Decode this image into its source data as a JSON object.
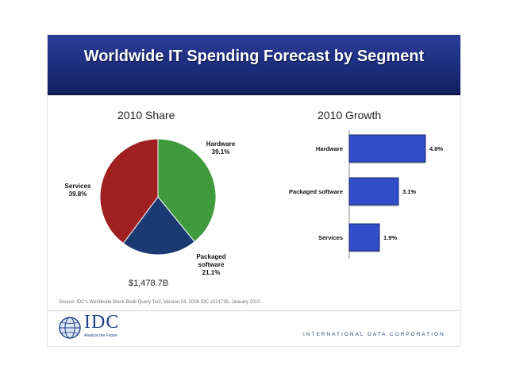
{
  "slide": {
    "title": "Worldwide IT Spending Forecast by Segment",
    "source": "Source: IDC's Worldwide Black Book Query Tool, Version 04, 2009 IDC #221730, January 2010",
    "brand": "IDC",
    "tagline": "Analyze the Future",
    "corporation": "INTERNATIONAL DATA CORPORATION"
  },
  "colors": {
    "banner": "#1c2d7d",
    "hardware": "#3f9a3c",
    "packaged_software": "#1b3a73",
    "services": "#a01f1f",
    "bars": "#2f4ec8"
  },
  "chart_data": [
    {
      "type": "pie",
      "title": "2010 Share",
      "total_label": "$1,478.7B",
      "slices": [
        {
          "label": "Hardware",
          "value": 39.1,
          "value_label": "39.1%"
        },
        {
          "label": "Packaged software",
          "value": 21.1,
          "value_label": "21.1%"
        },
        {
          "label": "Services",
          "value": 39.8,
          "value_label": "39.8%"
        }
      ]
    },
    {
      "type": "bar",
      "orientation": "horizontal",
      "title": "2010 Growth",
      "categories": [
        "Hardware",
        "Packaged software",
        "Services"
      ],
      "values": [
        4.8,
        3.1,
        1.9
      ],
      "value_labels": [
        "4.8%",
        "3.1%",
        "1.9%"
      ]
    }
  ]
}
